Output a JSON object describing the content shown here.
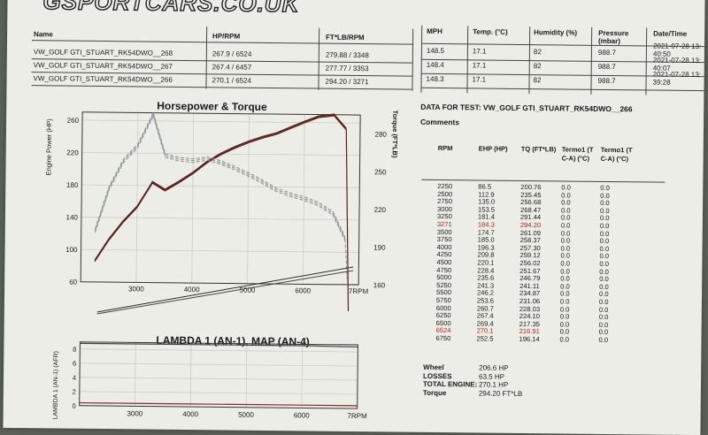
{
  "logo": "GSPORTCARS.CO.UK",
  "runs_table": {
    "headers": [
      "Name",
      "HP/RPM",
      "FT*LB/RPM"
    ],
    "rows": [
      [
        "VW_GOLF GTI_STUART_RK54DWO__268",
        "267.9 / 6524",
        "279.88 / 3348"
      ],
      [
        "VW_GOLF GTI_STUART_RK54DWO__267",
        "267.4 / 6457",
        "277.77 / 3353"
      ],
      [
        "VW_GOLF GTI_STUART_RK54DWO__266",
        "270.1 / 6524",
        "294.20 / 3271"
      ]
    ]
  },
  "conditions_table": {
    "headers": [
      "MPH",
      "Temp. (°C)",
      "Humidity (%)",
      "Pressure (mbar)",
      "Date/Time"
    ],
    "rows": [
      [
        "148.5",
        "17.1",
        "82",
        "988.7",
        "2021-07-28 13:40:50"
      ],
      [
        "148.4",
        "17.1",
        "82",
        "988.7",
        "2021-07-28 13:40:07"
      ],
      [
        "148.3",
        "17.1",
        "82",
        "988.7",
        "2021-07-28 13:39:28"
      ]
    ]
  },
  "data_title": "DATA FOR TEST: VW_GOLF GTI_STUART_RK54DWO__266",
  "comments_label": "Comments",
  "data_table": {
    "headers": [
      "RPM",
      "EHP (HP)",
      "TQ (FT*LB)",
      "Termo1 (T C-A) (°C)",
      "Termo1 (T C-A) (°C)"
    ],
    "rows": [
      [
        "2250",
        "86.5",
        "200.76",
        "0.0",
        "0.0"
      ],
      [
        "2500",
        "112.9",
        "235.45",
        "0.0",
        "0.0"
      ],
      [
        "2750",
        "135.0",
        "256.68",
        "0.0",
        "0.0"
      ],
      [
        "3000",
        "153.5",
        "268.47",
        "0.0",
        "0.0"
      ],
      [
        "3250",
        "181.4",
        "291.44",
        "0.0",
        "0.0"
      ],
      [
        "3271",
        "184.3",
        "294.20",
        "0.0",
        "0.0"
      ],
      [
        "3500",
        "174.7",
        "261.09",
        "0.0",
        "0.0"
      ],
      [
        "3750",
        "185.0",
        "258.37",
        "0.0",
        "0.0"
      ],
      [
        "4000",
        "196.3",
        "257.30",
        "0.0",
        "0.0"
      ],
      [
        "4250",
        "209.8",
        "259.12",
        "0.0",
        "0.0"
      ],
      [
        "4500",
        "220.1",
        "256.02",
        "0.0",
        "0.0"
      ],
      [
        "4750",
        "228.4",
        "251.67",
        "0.0",
        "0.0"
      ],
      [
        "5000",
        "235.6",
        "246.79",
        "0.0",
        "0.0"
      ],
      [
        "5250",
        "241.3",
        "241.11",
        "0.0",
        "0.0"
      ],
      [
        "5500",
        "246.2",
        "234.87",
        "0.0",
        "0.0"
      ],
      [
        "5750",
        "253.6",
        "231.06",
        "0.0",
        "0.0"
      ],
      [
        "6000",
        "260.7",
        "228.03",
        "0.0",
        "0.0"
      ],
      [
        "6250",
        "267.4",
        "224.10",
        "0.0",
        "0.0"
      ],
      [
        "6500",
        "269.4",
        "217.35",
        "0.0",
        "0.0"
      ],
      [
        "6524",
        "270.1",
        "216.91",
        "0.0",
        "0.0"
      ],
      [
        "6750",
        "252.5",
        "196.14",
        "0.0",
        "0.0"
      ]
    ],
    "highlight_color": "#b22222"
  },
  "summary": {
    "rows": [
      [
        "Wheel",
        "206.6 HP"
      ],
      [
        "LOSSES",
        "63.5 HP"
      ],
      [
        "TOTAL ENGINE:",
        "270.1 HP"
      ],
      [
        "Torque",
        "294.20 FT*LB"
      ]
    ]
  },
  "hp_chart": {
    "title": "Horsepower & Torque",
    "y_left_label": "Engine Power (HP)",
    "y_right_label": "Torque (FT*LB)",
    "y_left_ticks": [
      "60",
      "100",
      "140",
      "180",
      "220",
      "260"
    ],
    "y_right_ticks": [
      "160",
      "190",
      "220",
      "250",
      "280"
    ],
    "x_ticks": [
      "3000",
      "4000",
      "5000",
      "6000",
      "7RPM"
    ],
    "colors": {
      "power": "#5a1f1f",
      "torque": "#8a9290",
      "grid": "#c7c9c2"
    }
  },
  "lambda_chart": {
    "title": "LAMBDA 1 (AN-1), MAP  (AN-4)",
    "y_label": "LAMBDA 1 (AN-1) (AFR)",
    "y_ticks": [
      "0",
      "2",
      "4",
      "6",
      "8"
    ],
    "x_ticks": [
      "3000",
      "4000",
      "5000",
      "6000",
      "7RPM"
    ]
  },
  "chart_data": [
    {
      "type": "line",
      "title": "Horsepower & Torque",
      "xlabel": "",
      "ylabel": "Engine Power (HP)",
      "y2label": "Torque (FT*LB)",
      "xlim": [
        2000,
        7000
      ],
      "ylim": [
        60,
        270
      ],
      "y2lim": [
        160,
        295
      ],
      "grid": true,
      "series": [
        {
          "axis": "left",
          "style": "solid",
          "x": [
            2250,
            2500,
            2750,
            3000,
            3250,
            3271,
            3500,
            3750,
            4000,
            4250,
            4500,
            4750,
            5000,
            5250,
            5500,
            5750,
            6000,
            6250,
            6500,
            6524,
            6750
          ],
          "y": [
            86.5,
            112.9,
            135.0,
            153.5,
            181.4,
            184.3,
            174.7,
            185.0,
            196.3,
            209.8,
            220.1,
            228.4,
            235.6,
            241.3,
            246.2,
            253.6,
            260.7,
            267.4,
            269.4,
            270.1,
            252.5
          ]
        },
        {
          "axis": "right",
          "style": "dashed",
          "x": [
            2250,
            2500,
            2750,
            3000,
            3250,
            3271,
            3500,
            3750,
            4000,
            4250,
            4500,
            4750,
            5000,
            5250,
            5500,
            5750,
            6000,
            6250,
            6500,
            6524,
            6750
          ],
          "y": [
            200.76,
            235.45,
            256.68,
            268.47,
            291.44,
            294.2,
            261.09,
            258.37,
            257.3,
            259.12,
            256.02,
            251.67,
            246.79,
            241.11,
            234.87,
            231.06,
            228.03,
            224.1,
            217.35,
            216.91,
            196.14
          ]
        }
      ]
    },
    {
      "type": "line",
      "title": "LAMBDA 1 (AN-1), MAP  (AN-4)",
      "xlabel": "",
      "ylabel": "LAMBDA 1 (AN-1) (AFR)",
      "xlim": [
        2000,
        7000
      ],
      "ylim": [
        0,
        9
      ],
      "grid": true,
      "series": [
        {
          "x": [
            2000,
            3000,
            4000,
            5000,
            6000,
            7000
          ],
          "y": [
            8.8,
            8.8,
            8.8,
            8.8,
            8.8,
            8.7
          ]
        },
        {
          "x": [
            2000,
            3000,
            4000,
            5000,
            6000,
            7000
          ],
          "y": [
            0.4,
            0.4,
            0.4,
            0.4,
            0.4,
            0.4
          ]
        }
      ]
    }
  ]
}
